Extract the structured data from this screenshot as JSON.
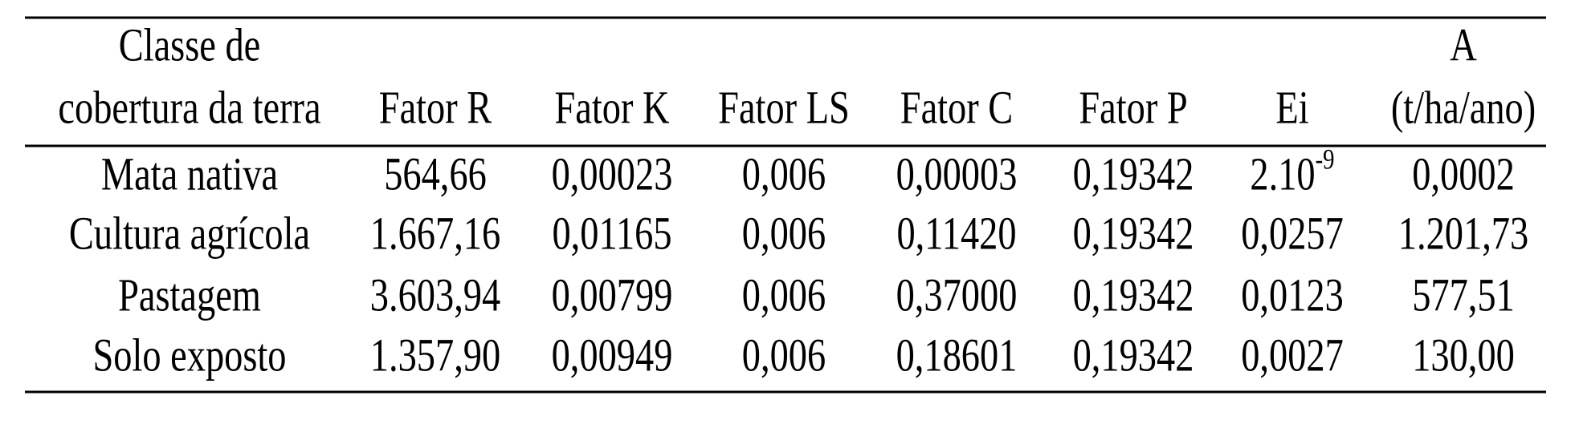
{
  "table": {
    "header": [
      [
        "Classe de",
        "cobertura da terra"
      ],
      [
        "Fator R"
      ],
      [
        "Fator K"
      ],
      [
        "Fator LS"
      ],
      [
        "Fator C"
      ],
      [
        "Fator P"
      ],
      [
        "Ei"
      ],
      [
        "A",
        "(t/ha/ano)"
      ]
    ],
    "rows": [
      [
        "Mata nativa",
        "564,66",
        "0,00023",
        "0,006",
        "0,00003",
        "0,19342",
        {
          "base": "2.10",
          "sup": "-9"
        },
        "0,0002"
      ],
      [
        "Cultura agrícola",
        "1.667,16",
        "0,01165",
        "0,006",
        "0,11420",
        "0,19342",
        "0,0257",
        "1.201,73"
      ],
      [
        "Pastagem",
        "3.603,94",
        "0,00799",
        "0,006",
        "0,37000",
        "0,19342",
        "0,0123",
        "577,51"
      ],
      [
        "Solo exposto",
        "1.357,90",
        "0,00949",
        "0,006",
        "0,18601",
        "0,19342",
        "0,0027",
        "130,00"
      ]
    ]
  }
}
